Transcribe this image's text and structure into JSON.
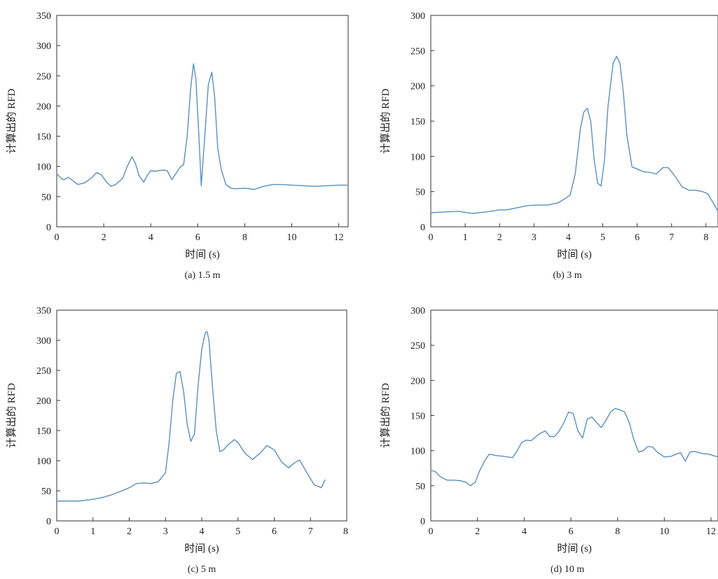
{
  "colors": {
    "line": "#5b8fc0",
    "axis": "#333333",
    "text": "#222222"
  },
  "chart_data": [
    {
      "type": "line",
      "caption": "(a) 1.5 m",
      "xlabel": "时间 (s)",
      "ylabel": "计算出的 RFD",
      "xlim": [
        0,
        12.4
      ],
      "ylim": [
        0,
        350
      ],
      "xticks": [
        0,
        2,
        4,
        6,
        8,
        10,
        12
      ],
      "yticks": [
        0,
        50,
        100,
        150,
        200,
        250,
        300,
        350
      ],
      "grid": false,
      "series": [
        {
          "x": [
            0,
            0.2,
            0.3,
            0.5,
            0.7,
            0.9,
            1.2,
            1.5,
            1.7,
            1.9,
            2.1,
            2.3,
            2.5,
            2.8,
            3.0,
            3.2,
            3.35,
            3.5,
            3.7,
            3.85,
            4.0,
            4.2,
            4.5,
            4.7,
            4.9,
            5.1,
            5.25,
            5.4,
            5.55,
            5.7,
            5.82,
            5.92,
            6.05,
            6.15,
            6.3,
            6.45,
            6.6,
            6.72,
            6.85,
            7.0,
            7.2,
            7.4,
            7.6,
            8.0,
            8.4,
            8.8,
            9.2,
            9.6,
            10.0,
            10.5,
            11.0,
            11.5,
            12.0,
            12.4
          ],
          "y": [
            88,
            80,
            78,
            82,
            76,
            70,
            73,
            82,
            90,
            86,
            75,
            67,
            70,
            80,
            100,
            116,
            105,
            85,
            74,
            85,
            93,
            92,
            94,
            93,
            78,
            90,
            99,
            103,
            150,
            230,
            270,
            245,
            150,
            68,
            150,
            235,
            256,
            215,
            130,
            95,
            70,
            64,
            63,
            64,
            62,
            67,
            70,
            70,
            69,
            68,
            67,
            68,
            69,
            69
          ]
        }
      ]
    },
    {
      "type": "line",
      "caption": "(b) 3 m",
      "xlabel": "时间 (s)",
      "ylabel": "计算出的 RFD",
      "xlim": [
        0,
        8.35
      ],
      "ylim": [
        0,
        300
      ],
      "xticks": [
        0,
        1,
        2,
        3,
        4,
        5,
        6,
        7,
        8
      ],
      "yticks": [
        0,
        50,
        100,
        150,
        200,
        250,
        300
      ],
      "grid": false,
      "series": [
        {
          "x": [
            0,
            0.4,
            0.8,
            1.2,
            1.6,
            2.0,
            2.2,
            2.5,
            2.8,
            3.1,
            3.4,
            3.7,
            3.9,
            4.05,
            4.2,
            4.35,
            4.45,
            4.55,
            4.65,
            4.75,
            4.85,
            4.95,
            5.05,
            5.15,
            5.3,
            5.4,
            5.5,
            5.6,
            5.7,
            5.85,
            6.0,
            6.2,
            6.4,
            6.55,
            6.75,
            6.9,
            7.1,
            7.3,
            7.5,
            7.7,
            7.9,
            8.05,
            8.2,
            8.35
          ],
          "y": [
            20,
            21,
            22,
            19,
            21,
            24,
            24,
            27,
            30,
            31,
            31,
            34,
            40,
            45,
            75,
            140,
            163,
            168,
            150,
            95,
            62,
            58,
            95,
            170,
            232,
            242,
            232,
            190,
            130,
            85,
            82,
            78,
            77,
            75,
            84,
            84,
            72,
            57,
            52,
            52,
            50,
            47,
            35,
            22
          ]
        }
      ]
    },
    {
      "type": "line",
      "caption": "(c) 5 m",
      "xlabel": "时间 (s)",
      "ylabel": "计算出的 RFD",
      "xlim": [
        0,
        8
      ],
      "ylim": [
        0,
        350
      ],
      "xticks": [
        0,
        1,
        2,
        3,
        4,
        5,
        6,
        7,
        8
      ],
      "yticks": [
        0,
        50,
        100,
        150,
        200,
        250,
        300,
        350
      ],
      "grid": false,
      "series": [
        {
          "x": [
            0,
            0.3,
            0.6,
            0.9,
            1.2,
            1.5,
            1.8,
            2.0,
            2.2,
            2.4,
            2.6,
            2.8,
            3.0,
            3.1,
            3.2,
            3.3,
            3.4,
            3.5,
            3.6,
            3.7,
            3.8,
            3.9,
            4.0,
            4.1,
            4.15,
            4.2,
            4.3,
            4.4,
            4.5,
            4.6,
            4.7,
            4.8,
            4.9,
            5.0,
            5.2,
            5.4,
            5.6,
            5.8,
            6.0,
            6.2,
            6.4,
            6.55,
            6.7,
            6.9,
            7.1,
            7.3,
            7.4
          ],
          "y": [
            33,
            33,
            33,
            35,
            38,
            43,
            50,
            55,
            62,
            63,
            62,
            65,
            80,
            130,
            200,
            245,
            248,
            215,
            160,
            132,
            145,
            225,
            285,
            313,
            314,
            300,
            220,
            150,
            115,
            118,
            125,
            130,
            135,
            130,
            112,
            102,
            112,
            125,
            118,
            98,
            88,
            96,
            101,
            80,
            60,
            55,
            68
          ]
        }
      ]
    },
    {
      "type": "line",
      "caption": "(d) 10 m",
      "xlabel": "时间 (s)",
      "ylabel": "计算出的 RFD",
      "xlim": [
        0,
        12.3
      ],
      "ylim": [
        0,
        300
      ],
      "xticks": [
        0,
        2,
        4,
        6,
        8,
        10,
        12
      ],
      "yticks": [
        0,
        50,
        100,
        150,
        200,
        250,
        300
      ],
      "grid": false,
      "series": [
        {
          "x": [
            0,
            0.2,
            0.4,
            0.7,
            1.0,
            1.3,
            1.5,
            1.7,
            1.9,
            2.1,
            2.3,
            2.5,
            2.8,
            3.1,
            3.3,
            3.5,
            3.7,
            3.9,
            4.1,
            4.3,
            4.5,
            4.7,
            4.9,
            5.1,
            5.3,
            5.5,
            5.7,
            5.9,
            6.1,
            6.3,
            6.5,
            6.7,
            6.9,
            7.1,
            7.3,
            7.5,
            7.7,
            7.9,
            8.1,
            8.3,
            8.5,
            8.7,
            8.9,
            9.1,
            9.3,
            9.5,
            9.7,
            10.0,
            10.3,
            10.5,
            10.7,
            10.9,
            11.1,
            11.3,
            11.6,
            11.9,
            12.3
          ],
          "y": [
            72,
            70,
            63,
            58,
            58,
            57,
            55,
            50,
            55,
            72,
            85,
            95,
            93,
            92,
            91,
            90,
            100,
            112,
            115,
            114,
            120,
            125,
            128,
            120,
            120,
            128,
            140,
            155,
            153,
            128,
            118,
            145,
            148,
            140,
            133,
            143,
            155,
            160,
            158,
            155,
            140,
            115,
            98,
            100,
            106,
            105,
            98,
            91,
            92,
            95,
            97,
            85,
            98,
            99,
            96,
            95,
            91
          ]
        }
      ]
    }
  ]
}
